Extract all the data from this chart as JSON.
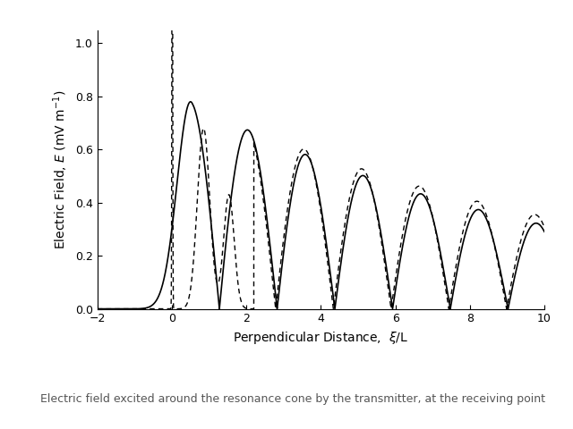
{
  "xlabel": "Perpendicular Distance,  $\\xi$/L",
  "ylabel": "Electric Field, $E$ (mV m$^{-1}$)",
  "xlim": [
    -2,
    10
  ],
  "ylim": [
    0.0,
    1.05
  ],
  "yticks": [
    0.0,
    0.2,
    0.4,
    0.6,
    0.8,
    1.0
  ],
  "xticks": [
    -2,
    0,
    2,
    4,
    6,
    8,
    10
  ],
  "background_color": "#ffffff",
  "caption": "Electric field excited around the resonance cone by the transmitter, at the receiving point",
  "figsize": [
    6.4,
    4.8
  ],
  "dpi": 100
}
